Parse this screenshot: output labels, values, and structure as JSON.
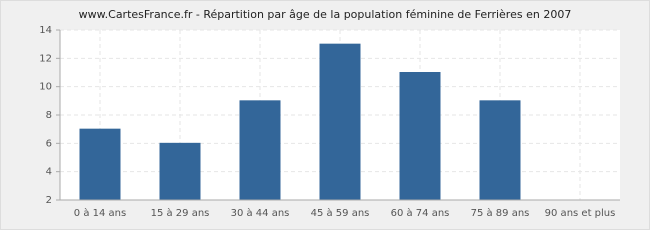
{
  "chart_data": {
    "type": "bar",
    "title": "www.CartesFrance.fr - Répartition par âge de la population féminine de Ferrières en 2007",
    "categories": [
      "0 à 14 ans",
      "15 à 29 ans",
      "30 à 44 ans",
      "45 à 59 ans",
      "60 à 74 ans",
      "75 à 89 ans",
      "90 ans et plus"
    ],
    "values": [
      7,
      6,
      9,
      13,
      11,
      9,
      2
    ],
    "color": "#336699",
    "ylim": [
      2,
      14
    ],
    "yticks": [
      2,
      4,
      6,
      8,
      10,
      12,
      14
    ],
    "grid": true
  }
}
